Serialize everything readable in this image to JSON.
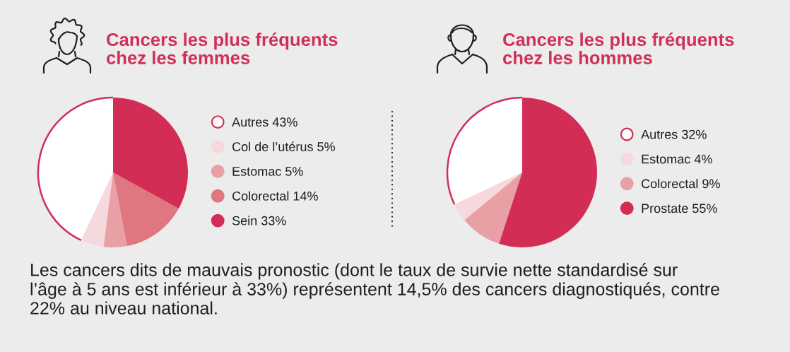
{
  "chart_data": [
    {
      "type": "pie",
      "title": "Cancers les plus fréquents\nchez les femmes",
      "categories": [
        "Autres",
        "Col de l’utérus",
        "Estomac",
        "Colorectal",
        "Sein"
      ],
      "values": [
        43,
        5,
        5,
        14,
        33
      ],
      "value_labels": [
        "43%",
        "5%",
        "5%",
        "14%",
        "33%"
      ],
      "colors": [
        "#ffffff",
        "#f6d9dc",
        "#e8a0a4",
        "#e07680",
        "#d22e55"
      ],
      "legend": "right"
    },
    {
      "type": "pie",
      "title": "Cancers les plus fréquents\nchez les hommes",
      "categories": [
        "Autres",
        "Estomac",
        "Colorectal",
        "Prostate"
      ],
      "values": [
        32,
        4,
        9,
        55
      ],
      "value_labels": [
        "32%",
        "4%",
        "9%",
        "55%"
      ],
      "colors": [
        "#ffffff",
        "#f6d9dc",
        "#e8a0a4",
        "#d22e55"
      ],
      "legend": "right"
    },
    {
      "type": "other",
      "annotations": [
        "Les cancers dits de mauvais pronostic (dont le taux de survie nette standardisé sur\nl’âge à 5 ans est inférieur à 33%) représentent 14,5% des cancers diagnostiqués, contre\n22% au niveau national."
      ]
    }
  ]
}
